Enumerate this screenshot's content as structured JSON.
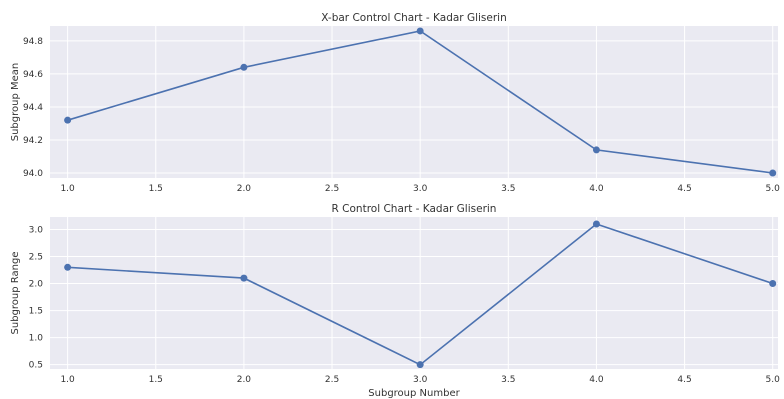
{
  "chart_data": [
    {
      "type": "line",
      "title": "X-bar Control Chart - Kadar Gliserin",
      "xlabel": "",
      "ylabel": "Subgroup Mean",
      "x": [
        1,
        2,
        3,
        4,
        5
      ],
      "y": [
        94.32,
        94.64,
        94.86,
        94.14,
        94.0
      ],
      "xlim": [
        0.9,
        5.03
      ],
      "ylim": [
        93.97,
        94.89
      ],
      "xticks": [
        "1.0",
        "1.5",
        "2.0",
        "2.5",
        "3.0",
        "3.5",
        "4.0",
        "4.5",
        "5.0"
      ],
      "yticks": [
        "94.0",
        "94.2",
        "94.4",
        "94.6",
        "94.8"
      ],
      "grid": true,
      "color": "#4c72b0",
      "background": "#eaeaf2"
    },
    {
      "type": "line",
      "title": "R Control Chart - Kadar Gliserin",
      "xlabel": "Subgroup Number",
      "ylabel": "Subgroup Range",
      "x": [
        1,
        2,
        3,
        4,
        5
      ],
      "y": [
        2.3,
        2.1,
        0.5,
        3.1,
        2.0
      ],
      "xlim": [
        0.9,
        5.03
      ],
      "ylim": [
        0.42,
        3.23
      ],
      "xticks": [
        "1.0",
        "1.5",
        "2.0",
        "2.5",
        "3.0",
        "3.5",
        "4.0",
        "4.5",
        "5.0"
      ],
      "yticks": [
        "0.5",
        "1.0",
        "1.5",
        "2.0",
        "2.5",
        "3.0"
      ],
      "grid": true,
      "color": "#4c72b0",
      "background": "#eaeaf2"
    }
  ]
}
